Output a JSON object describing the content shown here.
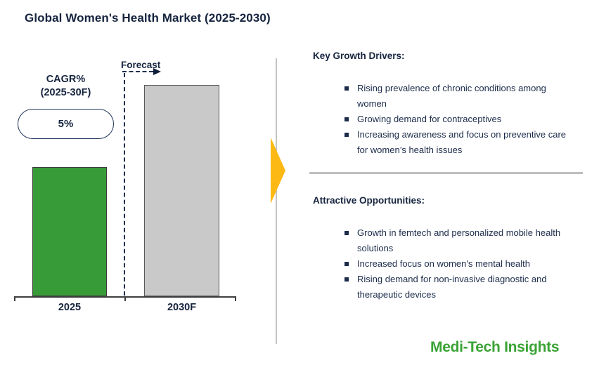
{
  "title": "Global Women's Health Market (2025-2030)",
  "chart_data": {
    "type": "bar",
    "title": "Global Women's Health Market (2025-2030)",
    "categories": [
      "2025",
      "2030F"
    ],
    "values_relative": [
      61,
      100
    ],
    "value_note": "No numeric y-axis shown; bar heights are illustrative. 2025 bar is ~61% of the 2030F bar height.",
    "bar_colors": [
      "#379b37",
      "#c9c9c9"
    ],
    "xlabel": "",
    "ylabel": "",
    "y_axis_ticks": "none",
    "grid": false,
    "legend": "none",
    "annotations": {
      "cagr_label_line1": "CAGR%",
      "cagr_label_line2": "(2025-30F)",
      "cagr_value": "5%",
      "forecast_label": "Forecast"
    }
  },
  "right_panel": {
    "drivers": {
      "heading": "Key Growth Drivers:",
      "items": [
        "Rising prevalence of chronic conditions among women",
        "Growing demand for contraceptives",
        "Increasing awareness and focus on preventive care for women’s health issues"
      ]
    },
    "opportunities": {
      "heading": "Attractive Opportunities:",
      "items": [
        "Growth in femtech and personalized mobile health solutions",
        "Increased focus on women's mental health",
        "Rising demand for non-invasive diagnostic and therapeutic devices"
      ]
    }
  },
  "branding": {
    "logo_text": "Medi-Tech Insights"
  },
  "colors": {
    "heading_navy": "#16243f",
    "body_navy": "#1c2b4a",
    "bar_green": "#379b37",
    "bar_gray": "#c9c9c9",
    "arrow_yellow": "#fdb913",
    "logo_green": "#3aa335",
    "divider_gray": "#bfbfbf"
  }
}
